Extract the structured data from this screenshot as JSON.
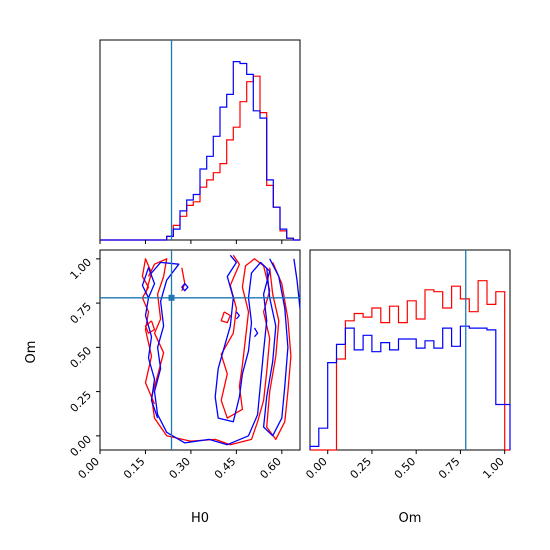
{
  "chart_data": [
    {
      "type": "histogram",
      "panel": "top-left",
      "parameter": "H0",
      "xlim": [
        0,
        0.66
      ],
      "truth": 0.236,
      "edges": [
        0.0,
        0.022,
        0.044,
        0.066,
        0.088,
        0.11,
        0.132,
        0.154,
        0.176,
        0.198,
        0.22,
        0.242,
        0.264,
        0.286,
        0.308,
        0.33,
        0.352,
        0.374,
        0.396,
        0.418,
        0.44,
        0.462,
        0.484,
        0.506,
        0.528,
        0.55,
        0.572,
        0.594,
        0.616,
        0.638,
        0.66
      ],
      "series": [
        {
          "color": "#ff0000",
          "values": [
            0,
            0,
            0,
            0,
            0,
            0,
            0,
            0,
            0,
            0,
            0.02,
            0.08,
            0.13,
            0.19,
            0.21,
            0.29,
            0.33,
            0.37,
            0.42,
            0.55,
            0.62,
            0.76,
            0.87,
            0.9,
            0.7,
            0.3,
            0.18,
            0.05,
            0.01,
            0
          ]
        },
        {
          "color": "#0000ff",
          "values": [
            0,
            0,
            0,
            0,
            0,
            0,
            0,
            0,
            0,
            0,
            0.02,
            0.06,
            0.16,
            0.22,
            0.25,
            0.39,
            0.46,
            0.57,
            0.73,
            0.8,
            0.98,
            0.97,
            0.91,
            0.71,
            0.67,
            0.33,
            0.18,
            0.06,
            0.01,
            0
          ]
        }
      ]
    },
    {
      "type": "contour",
      "panel": "bottom-left",
      "xlabel": "H0",
      "ylabel": "Om",
      "xlim": [
        0,
        0.66
      ],
      "ylim": [
        -0.08,
        1.05
      ],
      "xticks": [
        "0.00",
        "0.15",
        "0.30",
        "0.45",
        "0.60"
      ],
      "yticks": [
        "0.00",
        "0.25",
        "0.50",
        "0.75",
        "1.00"
      ],
      "truth": [
        0.236,
        0.78
      ],
      "series": [
        {
          "color": "#ff0000",
          "contours": [
            [
              [
                0.16,
                0.9
              ],
              [
                0.18,
                0.97
              ],
              [
                0.22,
                1.0
              ],
              [
                0.21,
                0.9
              ],
              [
                0.19,
                0.8
              ],
              [
                0.2,
                0.66
              ],
              [
                0.18,
                0.58
              ],
              [
                0.21,
                0.47
              ],
              [
                0.19,
                0.34
              ],
              [
                0.17,
                0.22
              ],
              [
                0.18,
                0.1
              ],
              [
                0.22,
                0.0
              ],
              [
                0.3,
                -0.03
              ],
              [
                0.38,
                -0.02
              ],
              [
                0.43,
                -0.05
              ],
              [
                0.5,
                -0.02
              ],
              [
                0.52,
                0.08
              ],
              [
                0.54,
                0.2
              ],
              [
                0.55,
                0.36
              ],
              [
                0.56,
                0.55
              ],
              [
                0.54,
                0.7
              ],
              [
                0.56,
                0.82
              ],
              [
                0.54,
                0.96
              ],
              [
                0.51,
                1.0
              ],
              [
                0.48,
                0.96
              ],
              [
                0.47,
                0.84
              ],
              [
                0.49,
                0.7
              ],
              [
                0.48,
                0.55
              ],
              [
                0.47,
                0.4
              ],
              [
                0.46,
                0.28
              ],
              [
                0.47,
                0.15
              ],
              [
                0.42,
                0.1
              ],
              [
                0.4,
                0.2
              ],
              [
                0.42,
                0.35
              ],
              [
                0.4,
                0.46
              ],
              [
                0.44,
                0.58
              ],
              [
                0.45,
                0.72
              ],
              [
                0.43,
                0.85
              ],
              [
                0.46,
                0.97
              ],
              [
                0.44,
                1.02
              ]
            ],
            [
              [
                0.57,
                0.98
              ],
              [
                0.6,
                0.86
              ],
              [
                0.62,
                0.66
              ],
              [
                0.63,
                0.45
              ],
              [
                0.62,
                0.25
              ],
              [
                0.61,
                0.08
              ],
              [
                0.58,
                -0.02
              ],
              [
                0.55,
                0.05
              ],
              [
                0.56,
                0.25
              ],
              [
                0.58,
                0.45
              ],
              [
                0.59,
                0.65
              ],
              [
                0.57,
                0.8
              ],
              [
                0.56,
                0.95
              ]
            ],
            [
              [
                0.15,
                0.8
              ],
              [
                0.17,
                0.92
              ],
              [
                0.15,
                1.0
              ],
              [
                0.14,
                0.9
              ],
              [
                0.16,
                0.84
              ],
              [
                0.14,
                0.78
              ],
              [
                0.16,
                0.7
              ],
              [
                0.15,
                0.6
              ],
              [
                0.17,
                0.45
              ],
              [
                0.15,
                0.3
              ],
              [
                0.18,
                0.18
              ]
            ],
            [
              [
                0.27,
                0.95
              ],
              [
                0.28,
                0.86
              ],
              [
                0.27,
                0.82
              ]
            ],
            [
              [
                0.17,
                0.65
              ],
              [
                0.18,
                0.6
              ],
              [
                0.16,
                0.58
              ],
              [
                0.15,
                0.62
              ],
              [
                0.17,
                0.65
              ]
            ],
            [
              [
                0.41,
                0.7
              ],
              [
                0.43,
                0.68
              ],
              [
                0.42,
                0.64
              ],
              [
                0.4,
                0.65
              ],
              [
                0.41,
                0.7
              ]
            ]
          ]
        },
        {
          "color": "#0000ff",
          "contours": [
            [
              [
                0.17,
                0.92
              ],
              [
                0.2,
                0.98
              ],
              [
                0.26,
                0.97
              ],
              [
                0.22,
                0.88
              ],
              [
                0.2,
                0.76
              ],
              [
                0.21,
                0.62
              ],
              [
                0.19,
                0.5
              ],
              [
                0.2,
                0.38
              ],
              [
                0.18,
                0.25
              ],
              [
                0.19,
                0.12
              ],
              [
                0.22,
                0.02
              ],
              [
                0.28,
                -0.04
              ],
              [
                0.36,
                -0.02
              ],
              [
                0.42,
                -0.05
              ],
              [
                0.49,
                0.0
              ],
              [
                0.52,
                0.12
              ],
              [
                0.53,
                0.3
              ],
              [
                0.54,
                0.48
              ],
              [
                0.55,
                0.65
              ],
              [
                0.54,
                0.8
              ],
              [
                0.56,
                0.93
              ],
              [
                0.53,
                0.98
              ],
              [
                0.5,
                0.92
              ],
              [
                0.49,
                0.78
              ],
              [
                0.5,
                0.64
              ],
              [
                0.49,
                0.48
              ],
              [
                0.47,
                0.35
              ],
              [
                0.46,
                0.22
              ],
              [
                0.44,
                0.08
              ],
              [
                0.39,
                0.1
              ],
              [
                0.38,
                0.22
              ],
              [
                0.39,
                0.38
              ],
              [
                0.41,
                0.5
              ],
              [
                0.43,
                0.62
              ],
              [
                0.44,
                0.78
              ],
              [
                0.42,
                0.9
              ],
              [
                0.45,
                0.98
              ],
              [
                0.43,
                1.02
              ]
            ],
            [
              [
                0.56,
                1.0
              ],
              [
                0.59,
                0.9
              ],
              [
                0.61,
                0.72
              ],
              [
                0.62,
                0.5
              ],
              [
                0.61,
                0.28
              ],
              [
                0.6,
                0.1
              ],
              [
                0.57,
                0.0
              ],
              [
                0.54,
                0.05
              ],
              [
                0.55,
                0.22
              ],
              [
                0.57,
                0.42
              ],
              [
                0.58,
                0.62
              ],
              [
                0.56,
                0.78
              ],
              [
                0.55,
                0.95
              ]
            ],
            [
              [
                0.64,
                1.0
              ],
              [
                0.65,
                0.88
              ],
              [
                0.66,
                0.72
              ]
            ],
            [
              [
                0.16,
                0.78
              ],
              [
                0.18,
                0.86
              ],
              [
                0.16,
                0.95
              ],
              [
                0.14,
                0.85
              ],
              [
                0.16,
                0.78
              ],
              [
                0.15,
                0.68
              ],
              [
                0.17,
                0.56
              ],
              [
                0.16,
                0.44
              ],
              [
                0.18,
                0.32
              ],
              [
                0.17,
                0.2
              ],
              [
                0.19,
                0.1
              ]
            ],
            [
              [
                0.28,
                0.86
              ],
              [
                0.27,
                0.84
              ],
              [
                0.28,
                0.82
              ],
              [
                0.29,
                0.84
              ],
              [
                0.28,
                0.86
              ]
            ],
            [
              [
                0.45,
                0.7
              ],
              [
                0.46,
                0.68
              ],
              [
                0.45,
                0.66
              ]
            ],
            [
              [
                0.51,
                0.61
              ],
              [
                0.52,
                0.58
              ],
              [
                0.51,
                0.56
              ]
            ]
          ]
        }
      ]
    },
    {
      "type": "histogram",
      "panel": "bottom-right",
      "parameter": "Om",
      "xlabel": "Om",
      "xlim": [
        -0.1,
        1.03
      ],
      "xticks": [
        "0.00",
        "0.25",
        "0.50",
        "0.75",
        "1.00"
      ],
      "truth": 0.78,
      "edges": [
        -0.1,
        -0.05,
        0.0,
        0.05,
        0.1,
        0.15,
        0.2,
        0.25,
        0.3,
        0.35,
        0.4,
        0.45,
        0.5,
        0.55,
        0.6,
        0.65,
        0.7,
        0.75,
        0.8,
        0.85,
        0.9,
        0.95,
        1.0,
        1.03
      ],
      "series": [
        {
          "color": "#ff0000",
          "values": [
            0,
            0,
            0,
            0.5,
            0.71,
            0.75,
            0.73,
            0.78,
            0.7,
            0.79,
            0.7,
            0.82,
            0.72,
            0.88,
            0.87,
            0.78,
            0.9,
            0.83,
            0.76,
            0.93,
            0.8,
            0.87,
            0
          ]
        },
        {
          "color": "#0000ff",
          "values": [
            0.02,
            0.12,
            0.48,
            0.58,
            0.67,
            0.55,
            0.63,
            0.54,
            0.59,
            0.55,
            0.61,
            0.61,
            0.56,
            0.6,
            0.56,
            0.67,
            0.57,
            0.68,
            0.67,
            0.67,
            0.66,
            0.25,
            0.25
          ]
        }
      ]
    }
  ]
}
